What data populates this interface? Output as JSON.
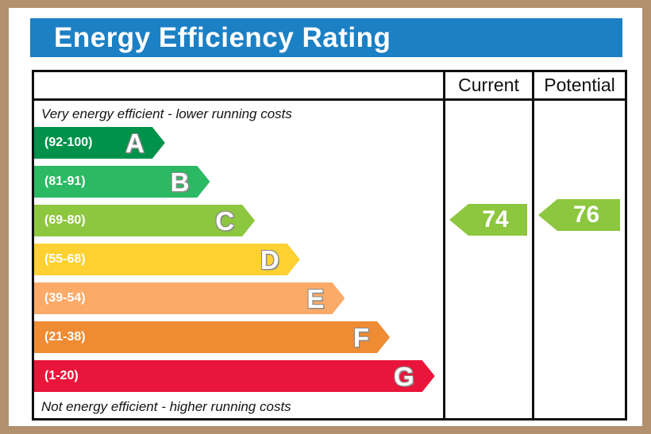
{
  "accent": {
    "frame": "#b3906e",
    "title_bg": "#1c80c4",
    "table_border": "#101010"
  },
  "title": "Energy Efficiency Rating",
  "header": {
    "current": "Current",
    "potential": "Potential"
  },
  "notes": {
    "top": "Very energy efficient - lower running costs",
    "bottom": "Not energy efficient - higher running costs"
  },
  "bands": [
    {
      "letter": "A",
      "range": "(92-100)",
      "color": "#00924a",
      "width": "32%"
    },
    {
      "letter": "B",
      "range": "(81-91)",
      "color": "#2cb963",
      "width": "43%"
    },
    {
      "letter": "C",
      "range": "(69-80)",
      "color": "#8dc63f",
      "width": "54%"
    },
    {
      "letter": "D",
      "range": "(55-68)",
      "color": "#fdd131",
      "width": "65%"
    },
    {
      "letter": "E",
      "range": "(39-54)",
      "color": "#fbaa67",
      "width": "76%"
    },
    {
      "letter": "F",
      "range": "(21-38)",
      "color": "#ee8b33",
      "width": "87%"
    },
    {
      "letter": "G",
      "range": "(1-20)",
      "color": "#e9153b",
      "width": "98%"
    }
  ],
  "current": {
    "value": "74",
    "color": "#8dc63f"
  },
  "potential": {
    "value": "76",
    "color": "#8dc63f"
  },
  "chart_data": {
    "type": "bar",
    "title": "Energy Efficiency Rating",
    "categories": [
      "A",
      "B",
      "C",
      "D",
      "E",
      "F",
      "G"
    ],
    "ranges": [
      "92-100",
      "81-91",
      "69-80",
      "55-68",
      "39-54",
      "21-38",
      "1-20"
    ],
    "colors": [
      "#00924a",
      "#2cb963",
      "#8dc63f",
      "#fdd131",
      "#fbaa67",
      "#ee8b33",
      "#e9153b"
    ],
    "relative_bar_widths_pct": [
      32,
      43,
      54,
      65,
      76,
      87,
      98
    ],
    "columns": [
      "Current",
      "Potential"
    ],
    "current_rating": 74,
    "current_band": "C",
    "potential_rating": 76,
    "potential_band": "C",
    "annotations": [
      "Very energy efficient - lower running costs",
      "Not energy efficient - higher running costs"
    ],
    "legend_position": "none",
    "grid": false
  }
}
